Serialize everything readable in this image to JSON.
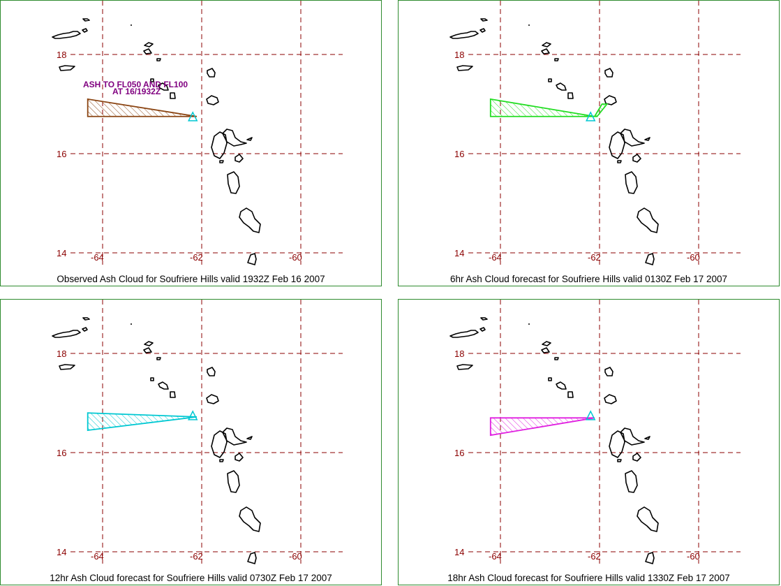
{
  "map": {
    "lat_ticks": [
      18,
      16,
      14
    ],
    "lon_ticks": [
      -64,
      -62,
      -60
    ],
    "volcano_icon": "triangle-icon"
  },
  "panels": [
    {
      "id": "observed",
      "caption": "Observed Ash Cloud for Soufriere  Hills valid 1932Z Feb 16 2007",
      "cloud_color": "#8b4513",
      "cloud_polygon": [
        [
          -64.3,
          16.75
        ],
        [
          -64.3,
          17.1
        ],
        [
          -62.1,
          16.75
        ]
      ],
      "annotation_line1": "ASH TO FL050 AND FL100",
      "annotation_line2": "AT 16/1932Z"
    },
    {
      "id": "6hr",
      "caption": "6hr Ash Cloud forecast for Soufriere  Hills valid 0130Z Feb 17 2007",
      "cloud_color": "#22dd22",
      "cloud_polygon": [
        [
          -64.2,
          16.75
        ],
        [
          -64.2,
          17.1
        ],
        [
          -62.1,
          16.75
        ],
        [
          -61.95,
          17.0
        ],
        [
          -61.85,
          17.0
        ],
        [
          -62.05,
          16.75
        ]
      ]
    },
    {
      "id": "12hr",
      "caption": "12hr Ash Cloud forecast for Soufriere  Hills valid 0730Z Feb 17 2007",
      "cloud_color": "#00c8d2",
      "cloud_polygon": [
        [
          -64.3,
          16.45
        ],
        [
          -64.3,
          16.8
        ],
        [
          -62.1,
          16.72
        ]
      ]
    },
    {
      "id": "18hr",
      "caption": "18hr Ash Cloud forecast for Soufriere  Hills valid 1330Z Feb 17 2007",
      "cloud_color": "#e020e0",
      "cloud_polygon": [
        [
          -64.2,
          16.35
        ],
        [
          -64.2,
          16.7
        ],
        [
          -62.1,
          16.7
        ]
      ]
    }
  ]
}
